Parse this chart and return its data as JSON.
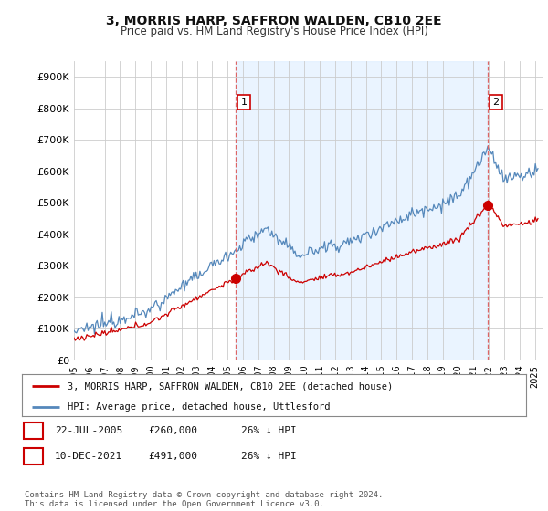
{
  "title": "3, MORRIS HARP, SAFFRON WALDEN, CB10 2EE",
  "subtitle": "Price paid vs. HM Land Registry's House Price Index (HPI)",
  "ytick_values": [
    0,
    100000,
    200000,
    300000,
    400000,
    500000,
    600000,
    700000,
    800000,
    900000
  ],
  "ylim": [
    0,
    950000
  ],
  "xlim_start": 1995.0,
  "xlim_end": 2025.5,
  "transaction1": {
    "date_num": 2005.55,
    "price": 260000,
    "label": "1"
  },
  "transaction2": {
    "date_num": 2021.94,
    "price": 491000,
    "label": "2"
  },
  "legend_line1": "3, MORRIS HARP, SAFFRON WALDEN, CB10 2EE (detached house)",
  "legend_line2": "HPI: Average price, detached house, Uttlesford",
  "table_row1": [
    "1",
    "22-JUL-2005",
    "£260,000",
    "26% ↓ HPI"
  ],
  "table_row2": [
    "2",
    "10-DEC-2021",
    "£491,000",
    "26% ↓ HPI"
  ],
  "footnote": "Contains HM Land Registry data © Crown copyright and database right 2024.\nThis data is licensed under the Open Government Licence v3.0.",
  "color_red": "#cc0000",
  "color_blue": "#5588bb",
  "color_blue_fill": "#ddeeff",
  "color_grid": "#cccccc",
  "color_vline": "#dd6666",
  "background_color": "#ffffff"
}
